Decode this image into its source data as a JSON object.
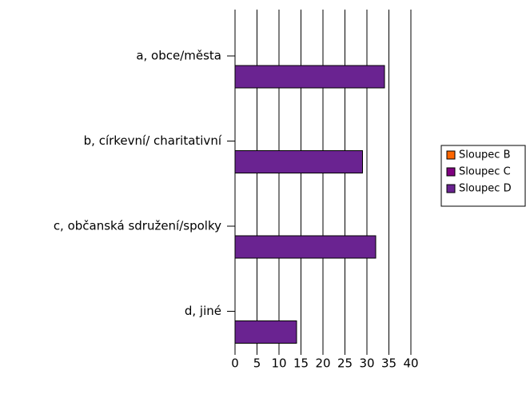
{
  "chart_data": {
    "type": "bar",
    "orientation": "horizontal",
    "categories": [
      "a, obce/města",
      "b, církevní/ charitativní",
      "c, občanská sdružení/spolky",
      "d, jiné"
    ],
    "series": [
      {
        "name": "Sloupec B",
        "color": "#ff6600",
        "values": [
          0,
          0,
          0,
          0
        ]
      },
      {
        "name": "Sloupec C",
        "color": "#800080",
        "values": [
          0,
          0,
          0,
          0
        ]
      },
      {
        "name": "Sloupec D",
        "color": "#6a2391",
        "values": [
          34,
          29,
          32,
          14
        ]
      }
    ],
    "xlim": [
      0,
      40
    ],
    "xticks": [
      0,
      5,
      10,
      15,
      20,
      25,
      30,
      35,
      40
    ],
    "grid": true,
    "legend": "right"
  }
}
